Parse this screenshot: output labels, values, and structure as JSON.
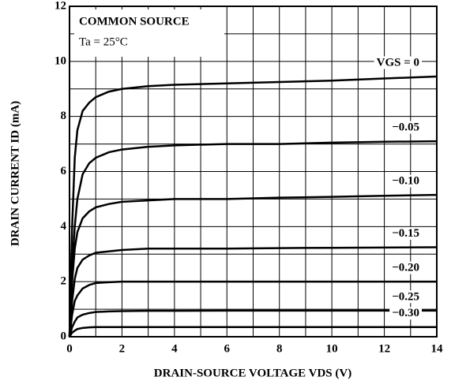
{
  "chart_data": {
    "type": "line",
    "annotations": [
      "COMMON SOURCE",
      "Ta = 25°C"
    ],
    "x_label": "DRAIN-SOURCE VOLTAGE   VDS  (V)",
    "y_label": "DRAIN CURRENT   ID   (mA)",
    "x": [
      0,
      0.1,
      0.2,
      0.3,
      0.5,
      0.75,
      1,
      1.5,
      2,
      3,
      4,
      6,
      8,
      10,
      12,
      14
    ],
    "series": [
      {
        "name": "VGS = 0",
        "color": "#000000",
        "values": [
          0,
          4.0,
          6.5,
          7.5,
          8.2,
          8.5,
          8.7,
          8.9,
          9.0,
          9.1,
          9.15,
          9.2,
          9.25,
          9.3,
          9.38,
          9.45
        ]
      },
      {
        "name": "−0.05",
        "color": "#000000",
        "values": [
          0,
          2.5,
          4.0,
          5.0,
          5.9,
          6.3,
          6.5,
          6.7,
          6.8,
          6.9,
          6.95,
          7.0,
          7.0,
          7.05,
          7.08,
          7.1
        ]
      },
      {
        "name": "−0.10",
        "color": "#000000",
        "values": [
          0,
          2.0,
          3.2,
          3.8,
          4.3,
          4.55,
          4.7,
          4.82,
          4.9,
          4.95,
          5.0,
          5.0,
          5.05,
          5.08,
          5.12,
          5.15
        ]
      },
      {
        "name": "−0.15",
        "color": "#000000",
        "values": [
          0,
          1.3,
          2.1,
          2.5,
          2.8,
          2.95,
          3.05,
          3.1,
          3.15,
          3.2,
          3.2,
          3.2,
          3.22,
          3.23,
          3.24,
          3.25
        ]
      },
      {
        "name": "−0.20",
        "color": "#000000",
        "values": [
          0,
          0.8,
          1.3,
          1.5,
          1.75,
          1.88,
          1.95,
          1.98,
          2.0,
          2.0,
          2.0,
          2.0,
          2.0,
          2.0,
          2.0,
          2.0
        ]
      },
      {
        "name": "−0.25",
        "color": "#000000",
        "values": [
          0,
          0.35,
          0.55,
          0.7,
          0.8,
          0.86,
          0.9,
          0.92,
          0.93,
          0.94,
          0.94,
          0.95,
          0.95,
          0.95,
          0.95,
          0.95
        ]
      },
      {
        "name": "−0.30",
        "color": "#000000",
        "values": [
          0,
          0.15,
          0.22,
          0.28,
          0.32,
          0.34,
          0.35,
          0.35,
          0.35,
          0.35,
          0.35,
          0.35,
          0.35,
          0.35,
          0.35,
          0.35
        ]
      }
    ],
    "xlim": [
      0,
      14
    ],
    "xticks": [
      0,
      2,
      4,
      6,
      8,
      10,
      12,
      14
    ],
    "xminor": [
      1,
      3,
      5,
      7,
      9,
      11,
      13
    ],
    "ylim": [
      0,
      12
    ],
    "yticks": [
      0,
      2,
      4,
      6,
      8,
      10,
      12
    ],
    "yminor": [
      1,
      3,
      5,
      7,
      9,
      11
    ],
    "grid": true
  }
}
